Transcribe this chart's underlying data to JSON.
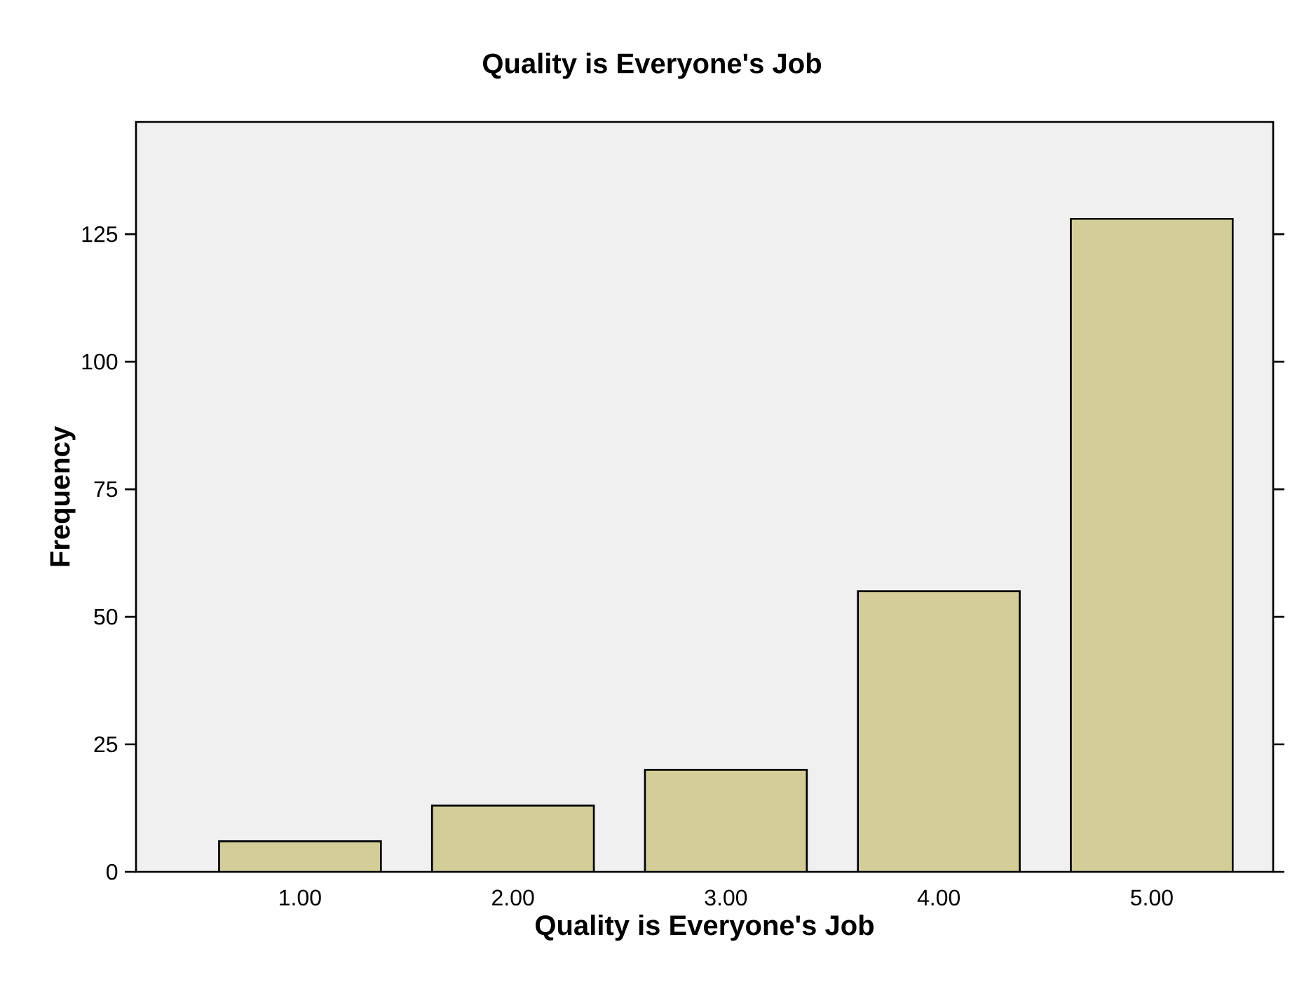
{
  "chart_data": {
    "type": "bar",
    "title": "Quality is Everyone's Job",
    "xlabel": "Quality is Everyone's Job",
    "ylabel": "Frequency",
    "categories": [
      "1.00",
      "2.00",
      "3.00",
      "4.00",
      "5.00"
    ],
    "values": [
      6,
      13,
      20,
      55,
      128
    ],
    "color": "#d3ce97",
    "ylim": [
      0,
      147
    ],
    "yticks": [
      0,
      25,
      50,
      75,
      100,
      125
    ],
    "grid": false
  }
}
